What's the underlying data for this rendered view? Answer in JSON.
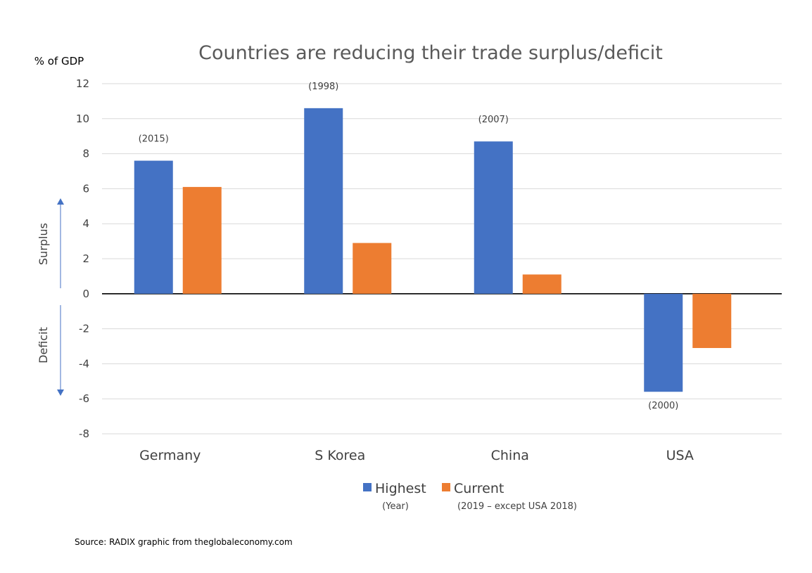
{
  "chart_data": {
    "type": "bar",
    "title": "Countries are reducing their trade surplus/deficit",
    "ylabel": "% of GDP",
    "ylim": [
      -8,
      12
    ],
    "yticks": [
      12,
      10,
      8,
      6,
      4,
      2,
      0,
      -2,
      -4,
      -6,
      -8
    ],
    "grid": true,
    "categories": [
      "Germany",
      "S Korea",
      "China",
      "USA"
    ],
    "series": [
      {
        "name": "Highest",
        "note": "(Year)",
        "color": "#4472C4",
        "values": [
          7.6,
          10.6,
          8.7,
          -5.6
        ],
        "year_labels": [
          "(2015)",
          "(1998)",
          "(2007)",
          "(2000)"
        ]
      },
      {
        "name": "Current",
        "note": "(2019 – except USA 2018)",
        "color": "#ED7D31",
        "values": [
          6.1,
          2.9,
          1.1,
          -3.1
        ]
      }
    ],
    "side_labels": {
      "surplus": "Surplus",
      "deficit": "Deficit"
    },
    "arrow_color": "#4472C4",
    "legend_position": "bottom-center"
  },
  "source": "Source: RADIX graphic from theglobaleconomy.com"
}
